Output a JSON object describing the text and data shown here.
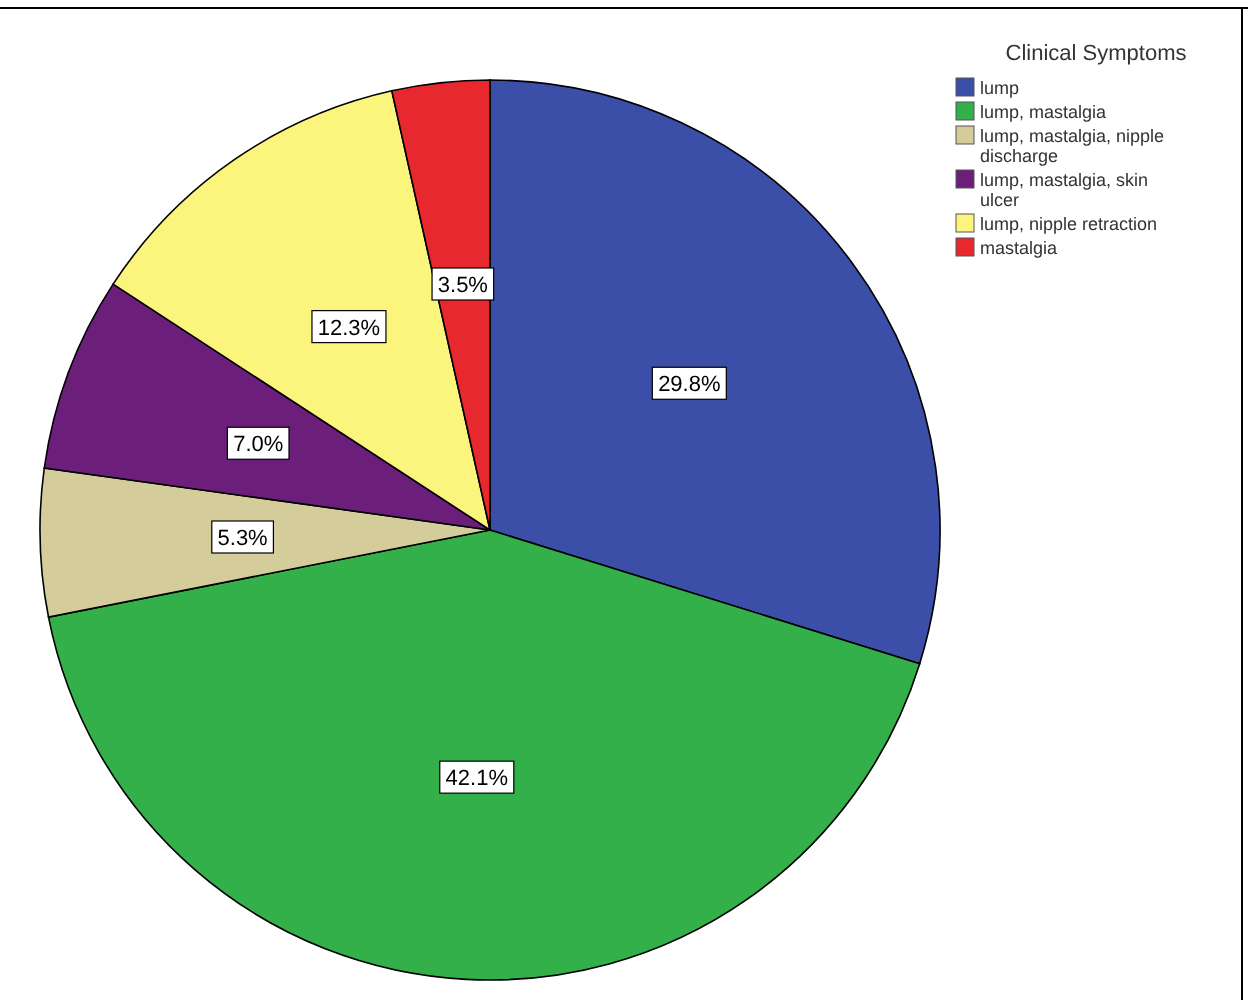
{
  "chart_data": {
    "type": "pie",
    "legend_title": "Clinical Symptoms",
    "legend": "top right",
    "categories": [
      "lump",
      "lump, mastalgia",
      "lump, mastalgia, nipple discharge",
      "lump, mastalgia, skin ulcer",
      "lump, nipple retraction",
      "mastalgia"
    ],
    "values": [
      29.8,
      42.1,
      5.3,
      7.0,
      12.3,
      3.5
    ],
    "value_labels": [
      "29.8%",
      "42.1%",
      "5.3%",
      "7.0%",
      "12.3%",
      "3.5%"
    ],
    "colors": [
      "#3c4fa8",
      "#33b04a",
      "#d4cc9a",
      "#6b1f7b",
      "#fbf57e",
      "#e8282f"
    ]
  }
}
